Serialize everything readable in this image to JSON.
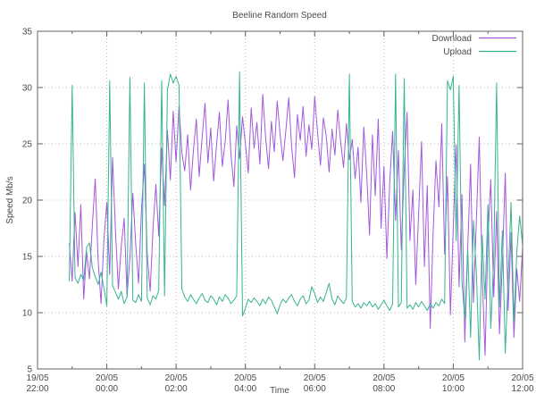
{
  "title": "Beeline Random Speed",
  "chart_data": {
    "type": "line",
    "title": "Beeline Random Speed",
    "xlabel": "Time",
    "ylabel": "Speed Mb/s",
    "ylim": [
      5,
      35
    ],
    "y_ticks": [
      5,
      10,
      15,
      20,
      25,
      30,
      35
    ],
    "x_ticks": [
      {
        "date": "19/05",
        "time": "22:00"
      },
      {
        "date": "20/05",
        "time": "00:00"
      },
      {
        "date": "20/05",
        "time": "02:00"
      },
      {
        "date": "20/05",
        "time": "04:00"
      },
      {
        "date": "20/05",
        "time": "06:00"
      },
      {
        "date": "20/05",
        "time": "08:00"
      },
      {
        "date": "20/05",
        "time": "10:00"
      },
      {
        "date": "20/05",
        "time": "12:00"
      }
    ],
    "x_range_hours_after_first_tick": [
      0,
      14
    ],
    "x_major_tick_every_hours": 2,
    "x_minor_tick_every_hours": 1,
    "grid": "dotted-major-both-axes",
    "legend_position": "top-right-inside",
    "t_start_hours": 0.9167,
    "t_step_hours": 0.08333,
    "series": [
      {
        "name": "Download",
        "color": "#a259dc",
        "values": [
          16.2,
          12.8,
          18.9,
          14.1,
          19.6,
          11.2,
          15.4,
          13.0,
          17.8,
          21.9,
          14.6,
          10.8,
          16.5,
          19.8,
          13.4,
          23.8,
          17.2,
          12.1,
          15.9,
          18.4,
          11.5,
          14.8,
          20.6,
          16.1,
          12.6,
          19.2,
          23.2,
          15.2,
          11.9,
          17.5,
          21.4,
          16.8,
          24.6,
          19.5,
          26.2,
          21.8,
          27.9,
          23.4,
          28.4,
          24.2,
          22.6,
          25.8,
          20.9,
          24.4,
          27.2,
          22.1,
          25.5,
          28.6,
          23.3,
          26.4,
          21.7,
          24.9,
          27.8,
          23.0,
          25.2,
          28.9,
          24.1,
          21.2,
          26.6,
          23.7,
          27.4,
          25.0,
          22.4,
          28.2,
          24.6,
          26.9,
          23.2,
          29.4,
          25.6,
          22.8,
          27.0,
          24.3,
          28.8,
          25.9,
          23.5,
          26.2,
          29.1,
          24.8,
          22.0,
          27.6,
          25.3,
          28.3,
          23.9,
          26.7,
          24.5,
          29.2,
          26.0,
          23.1,
          27.3,
          25.7,
          22.5,
          26.3,
          24.0,
          28.0,
          25.1,
          22.9,
          26.8,
          23.6,
          25.4,
          21.9,
          24.7,
          19.8,
          26.5,
          22.3,
          16.9,
          25.8,
          20.4,
          27.2,
          17.5,
          23.0,
          14.8,
          21.6,
          26.1,
          18.2,
          24.4,
          15.6,
          22.7,
          27.8,
          16.4,
          20.9,
          12.5,
          18.8,
          25.2,
          14.1,
          21.3,
          8.6,
          17.0,
          23.5,
          19.4,
          26.8,
          15.2,
          22.1,
          9.8,
          17.6,
          24.9,
          12.3,
          20.5,
          7.4,
          15.8,
          23.2,
          10.9,
          18.3,
          25.6,
          13.6,
          6.2,
          16.7,
          21.8,
          11.4,
          19.0,
          8.1,
          14.5,
          22.4,
          10.2,
          17.1,
          7.8,
          13.9,
          11.0,
          15.8
        ]
      },
      {
        "name": "Upload",
        "color": "#35b393",
        "values": [
          12.8,
          30.2,
          13.1,
          12.6,
          13.4,
          12.9,
          15.8,
          16.2,
          14.0,
          13.2,
          12.5,
          13.6,
          12.2,
          10.6,
          30.6,
          12.4,
          11.8,
          11.2,
          11.9,
          10.8,
          11.4,
          30.9,
          11.1,
          10.9,
          11.6,
          11.0,
          30.4,
          11.3,
          10.7,
          11.5,
          11.2,
          12.0,
          30.6,
          11.5,
          29.8,
          31.2,
          30.4,
          31.0,
          30.2,
          12.1,
          11.4,
          11.0,
          11.6,
          11.2,
          10.8,
          11.3,
          11.7,
          11.1,
          10.9,
          11.5,
          11.2,
          10.7,
          11.4,
          11.0,
          11.6,
          11.3,
          10.8,
          11.1,
          11.5,
          31.4,
          9.7,
          10.4,
          11.2,
          10.9,
          11.3,
          11.0,
          10.6,
          11.2,
          10.8,
          11.4,
          11.1,
          10.5,
          9.9,
          10.7,
          11.2,
          10.9,
          11.3,
          11.6,
          11.0,
          10.6,
          11.2,
          11.5,
          10.8,
          11.1,
          12.3,
          11.7,
          10.9,
          11.4,
          11.0,
          11.8,
          12.6,
          11.2,
          10.7,
          11.5,
          11.1,
          10.8,
          11.3,
          31.2,
          11.0,
          10.5,
          10.8,
          10.4,
          10.9,
          10.6,
          11.0,
          10.5,
          10.8,
          10.3,
          10.7,
          11.1,
          10.6,
          10.2,
          10.8,
          31.2,
          10.5,
          10.9,
          30.8,
          10.4,
          10.7,
          10.3,
          10.9,
          10.5,
          11.0,
          10.6,
          10.2,
          10.8,
          10.4,
          10.9,
          10.6,
          11.2,
          10.8,
          30.6,
          29.8,
          31.0,
          16.4,
          30.2,
          12.8,
          9.4,
          15.6,
          7.8,
          18.2,
          13.5,
          5.8,
          16.9,
          11.2,
          19.6,
          8.6,
          14.8,
          30.4,
          10.5,
          17.3,
          6.4,
          13.0,
          19.8,
          9.2,
          15.4,
          18.6,
          16.0
        ]
      }
    ]
  },
  "colors": {
    "border": "#606060",
    "grid": "#b8b8b8",
    "text": "#4a4a4a",
    "background": "#ffffff"
  }
}
